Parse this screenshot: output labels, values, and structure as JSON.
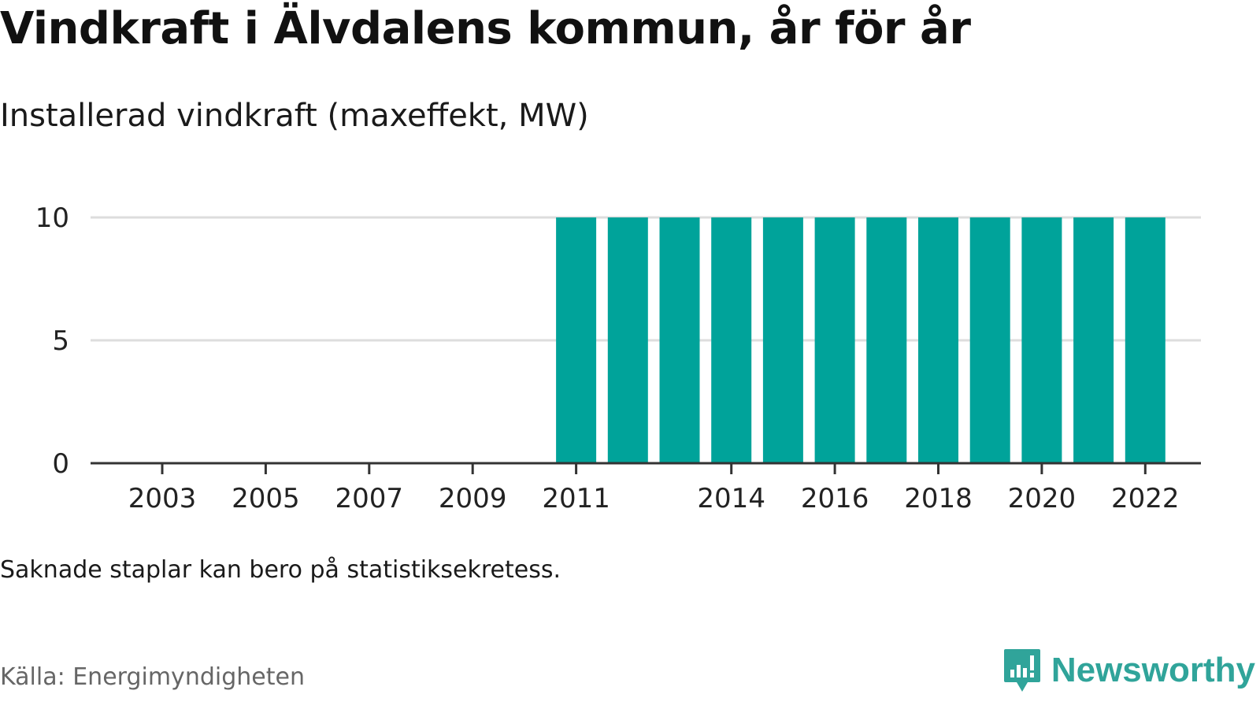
{
  "header": {
    "title": "Vindkraft i Älvdalens kommun, år för år",
    "subtitle": "Installerad vindkraft (maxeffekt, MW)"
  },
  "footer": {
    "note": "Saknade staplar kan bero på statistiksekretess.",
    "source": "Källa: Energimyndigheten",
    "brand": "Newsworthy",
    "brand_icon": "newsworthy-logo-icon"
  },
  "colors": {
    "bar": "#00a39a",
    "grid": "#dddddd",
    "axis": "#333333",
    "text": "#222222",
    "brand": "#30a49a"
  },
  "chart_data": {
    "type": "bar",
    "title": "",
    "xlabel": "",
    "ylabel": "",
    "categories": [
      "2002",
      "2003",
      "2004",
      "2005",
      "2006",
      "2007",
      "2008",
      "2009",
      "2010",
      "2011",
      "2012",
      "2013",
      "2014",
      "2015",
      "2016",
      "2017",
      "2018",
      "2019",
      "2020",
      "2021",
      "2022"
    ],
    "values": [
      0,
      0,
      0,
      0,
      0,
      0,
      0,
      0,
      0,
      10,
      10,
      10,
      10,
      10,
      10,
      10,
      10,
      10,
      10,
      10,
      10
    ],
    "x_tick_labels": [
      "2003",
      "2005",
      "2007",
      "2009",
      "2011",
      "2014",
      "2016",
      "2018",
      "2020",
      "2022"
    ],
    "y_ticks": [
      0,
      5,
      10
    ],
    "ylim": [
      0,
      10
    ],
    "grid": true,
    "legend": false
  }
}
